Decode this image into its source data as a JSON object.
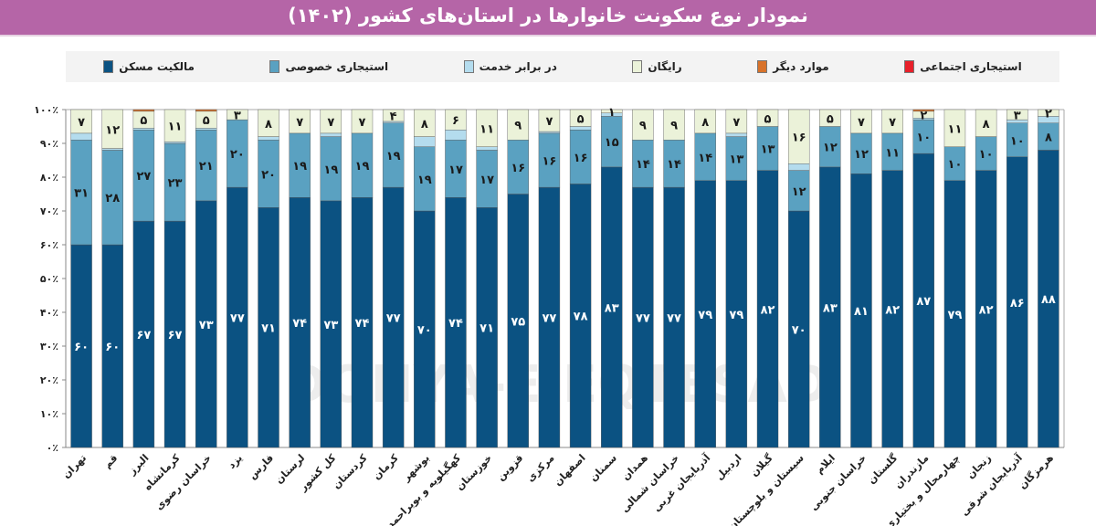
{
  "title": "نمودار نوع سکونت خانوارها در استان‌های کشور (۱۴۰۲)",
  "watermark": "DONYA-E-EQTESAD",
  "chart_data": {
    "type": "bar",
    "stacked": true,
    "title": "نمودار نوع سکونت خانوارها در استان‌های کشور (۱۴۰۲)",
    "xlabel": "",
    "ylabel": "",
    "ylim": [
      0,
      100
    ],
    "y_ticks": [
      "۰٪",
      "۱۰٪",
      "۲۰٪",
      "۳۰٪",
      "۴۰٪",
      "۵۰٪",
      "۶۰٪",
      "۷۰٪",
      "۸۰٪",
      "۹۰٪",
      "۱۰۰٪"
    ],
    "legend_placement": "top",
    "categories": [
      "تهران",
      "قم",
      "البرز",
      "کرمانشاه",
      "خراسان رضوی",
      "یزد",
      "فارس",
      "لرستان",
      "کل کشور",
      "کردستان",
      "کرمان",
      "بوشهر",
      "کهگیلویه و بویراحمد",
      "خوزستان",
      "قزوین",
      "مرکزی",
      "اصفهان",
      "سمنان",
      "همدان",
      "خراسان شمالی",
      "آذربایجان غربی",
      "اردبیل",
      "گیلان",
      "سیستان و بلوچستان",
      "ایلام",
      "خراسان جنوبی",
      "گلستان",
      "مازندران",
      "چهارمحال و بختیاری",
      "زنجان",
      "آذربایجان شرقی",
      "هرمزگان"
    ],
    "series": [
      {
        "name": "مالکیت مسکن",
        "color": "#0b5282",
        "labeled": true,
        "values": [
          60,
          60,
          67,
          67,
          73,
          77,
          71,
          74,
          73,
          74,
          77,
          70,
          74,
          71,
          75,
          77,
          78,
          83,
          77,
          77,
          79,
          79,
          82,
          70,
          83,
          81,
          82,
          87,
          79,
          82,
          86,
          88
        ]
      },
      {
        "name": "استیجاری خصوصی",
        "color": "#5aa1c1",
        "labeled": true,
        "values": [
          31,
          28,
          27,
          23,
          21,
          20,
          20,
          19,
          19,
          19,
          19,
          19,
          17,
          17,
          16,
          16,
          16,
          15,
          14,
          14,
          14,
          13,
          13,
          12,
          12,
          12,
          11,
          10,
          10,
          10,
          10,
          8
        ]
      },
      {
        "name": "در برابر خدمت",
        "color": "#b4dcee",
        "labeled": false,
        "values": [
          2,
          0.5,
          0.5,
          0.5,
          0.5,
          0,
          1,
          0,
          1,
          0,
          0.5,
          3,
          3,
          1,
          0,
          0.5,
          1,
          1,
          0,
          0,
          0,
          1,
          0,
          2,
          0,
          0,
          0,
          0.5,
          0,
          0,
          1,
          2
        ]
      },
      {
        "name": "رایگان",
        "color": "#ebf2d9",
        "labeled": true,
        "values": [
          7,
          12,
          5,
          11,
          5,
          3,
          8,
          7,
          7,
          7,
          4,
          8,
          6,
          11,
          9,
          7,
          5,
          1,
          9,
          9,
          8,
          7,
          5,
          16,
          5,
          7,
          7,
          2,
          11,
          8,
          3,
          2
        ]
      },
      {
        "name": "موارد دیگر",
        "color": "#d8722a",
        "labeled": false,
        "values": [
          0,
          0,
          0.5,
          0,
          0.5,
          0,
          0,
          0,
          0,
          0,
          0,
          0,
          0,
          0,
          0,
          0,
          0,
          0.5,
          0,
          0,
          0,
          0,
          0,
          0,
          0,
          0,
          0,
          1,
          0,
          0.5,
          0,
          0
        ]
      },
      {
        "name": "استیجاری اجتماعی",
        "color": "#e8202a",
        "labeled": false,
        "values": [
          0,
          0,
          0,
          0,
          0,
          0,
          0,
          0,
          0,
          0,
          0,
          0,
          0,
          0,
          0,
          0,
          0,
          0,
          0,
          0,
          0,
          0,
          0,
          0,
          0,
          0,
          0,
          0,
          0,
          0,
          0,
          0
        ]
      }
    ]
  }
}
